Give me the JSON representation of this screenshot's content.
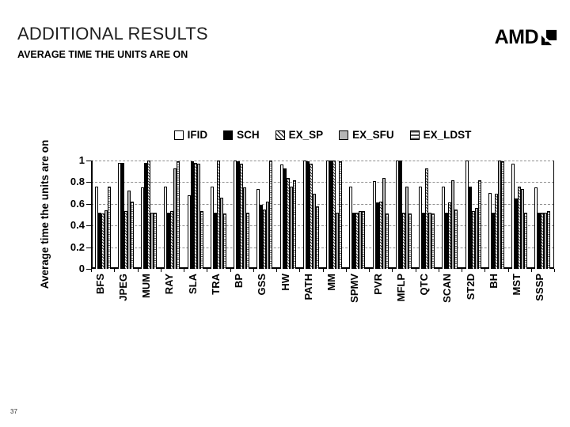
{
  "slide": {
    "title": "ADDITIONAL RESULTS",
    "subtitle": "AVERAGE TIME THE UNITS ARE ON",
    "logo_text": "AMD",
    "page_number": "37"
  },
  "chart_data": {
    "type": "bar",
    "title": "",
    "xlabel": "",
    "ylabel": "Average time the units are on",
    "ylim": [
      0,
      1
    ],
    "yticks": [
      0,
      0.2,
      0.4,
      0.6,
      0.8,
      1
    ],
    "grid": "horizontal-dashed",
    "legend_position": "top",
    "categories": [
      "BFS",
      "JPEG",
      "MUM",
      "RAY",
      "SLA",
      "TRA",
      "BP",
      "GSS",
      "HW",
      "PATH",
      "MM",
      "SPMV",
      "PVR",
      "MFLP",
      "QTC",
      "SCAN",
      "ST2D",
      "BH",
      "MST",
      "SSSP"
    ],
    "series": [
      {
        "name": "IFID",
        "pattern": "white-solid",
        "values": [
          0.76,
          0.98,
          0.75,
          0.76,
          0.68,
          0.76,
          1.0,
          0.74,
          0.96,
          1.0,
          1.0,
          0.76,
          0.81,
          1.0,
          0.76,
          0.76,
          1.0,
          0.7,
          0.97,
          0.75
        ]
      },
      {
        "name": "SCH",
        "pattern": "black-solid",
        "values": [
          0.52,
          0.98,
          0.98,
          0.52,
          0.99,
          0.52,
          0.99,
          0.59,
          0.93,
          0.99,
          1.0,
          0.52,
          0.61,
          1.0,
          0.52,
          0.52,
          0.76,
          0.52,
          0.65,
          0.52
        ]
      },
      {
        "name": "EX_SP",
        "pattern": "diagonal-hatch",
        "values": [
          0.51,
          0.53,
          1.0,
          0.53,
          0.98,
          1.0,
          0.97,
          0.55,
          0.84,
          0.97,
          1.0,
          0.52,
          0.62,
          0.52,
          0.93,
          0.61,
          0.53,
          0.69,
          0.76,
          0.52
        ]
      },
      {
        "name": "EX_SFU",
        "pattern": "gray-solid",
        "values": [
          0.54,
          0.72,
          0.52,
          0.93,
          0.97,
          0.66,
          0.75,
          0.62,
          0.76,
          0.69,
          0.52,
          0.53,
          0.84,
          0.76,
          0.52,
          0.82,
          0.56,
          1.0,
          0.74,
          0.52
        ]
      },
      {
        "name": "EX_LDST",
        "pattern": "horizontal-lines",
        "values": [
          0.76,
          0.62,
          0.52,
          0.99,
          0.53,
          0.51,
          0.52,
          1.0,
          0.82,
          0.58,
          0.99,
          0.53,
          0.51,
          0.51,
          0.51,
          0.55,
          0.82,
          0.99,
          0.52,
          0.53
        ]
      }
    ]
  }
}
